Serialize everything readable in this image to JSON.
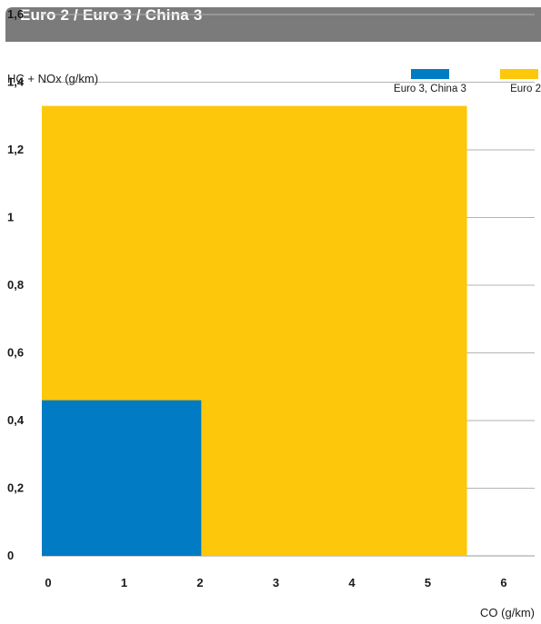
{
  "header": {
    "title": "Euro 2 / Euro 3 / China 3",
    "bg_color": "#7b7b7b"
  },
  "chart_data": {
    "type": "area",
    "ylabel": "HC + NOx (g/km)",
    "xlabel": "CO (g/km)",
    "xlim": [
      0,
      6.5
    ],
    "ylim": [
      0,
      1.6
    ],
    "x_ticks": [
      {
        "value": 0,
        "label": "0"
      },
      {
        "value": 1,
        "label": "1"
      },
      {
        "value": 2,
        "label": "2"
      },
      {
        "value": 3,
        "label": "3"
      },
      {
        "value": 4,
        "label": "4"
      },
      {
        "value": 5,
        "label": "5"
      },
      {
        "value": 6,
        "label": "6"
      }
    ],
    "y_ticks": [
      {
        "value": 0,
        "label": "0"
      },
      {
        "value": 0.2,
        "label": "0,2"
      },
      {
        "value": 0.4,
        "label": "0,4"
      },
      {
        "value": 0.6,
        "label": "0,6"
      },
      {
        "value": 0.8,
        "label": "0,8"
      },
      {
        "value": 1.0,
        "label": "1"
      },
      {
        "value": 1.2,
        "label": "1,2"
      },
      {
        "value": 1.4,
        "label": "1,4"
      },
      {
        "value": 1.6,
        "label": "1,6"
      }
    ],
    "grid": "horizontal",
    "legend_position": "top-right",
    "series": [
      {
        "name": "Euro 2",
        "color": "#fdc70c",
        "co_limit": 5.6,
        "hc_nox_limit": 1.33
      },
      {
        "name": "Euro 3, China 3",
        "color": "#007bc4",
        "co_limit": 2.1,
        "hc_nox_limit": 0.46
      }
    ]
  }
}
